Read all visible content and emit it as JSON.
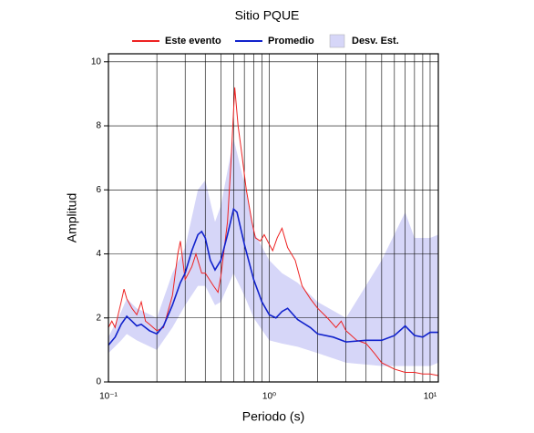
{
  "chart_data": {
    "type": "line",
    "title": "Sitio PQUE",
    "xlabel": "Periodo (s)",
    "ylabel": "Amplitud",
    "xscale": "log",
    "xlim": [
      0.1,
      11.25
    ],
    "ylim": [
      0,
      10.25
    ],
    "xticks": [
      {
        "value": 0.1,
        "label": "10⁻¹"
      },
      {
        "value": 1,
        "label": "10⁰"
      },
      {
        "value": 10,
        "label": "10¹"
      }
    ],
    "xgrid": [
      0.2,
      0.3,
      0.4,
      0.5,
      0.6,
      0.7,
      0.8,
      0.9,
      2,
      3,
      4,
      5,
      6,
      7,
      8,
      9
    ],
    "yticks": [
      0,
      2,
      4,
      6,
      8,
      10
    ],
    "grid": true,
    "legend": "top",
    "band": {
      "name": "Desv. Est.",
      "color": "#d6d6f8",
      "x": [
        0.1,
        0.12,
        0.13,
        0.15,
        0.2,
        0.25,
        0.3,
        0.36,
        0.4,
        0.46,
        0.5,
        0.6,
        0.7,
        0.8,
        1.0,
        1.2,
        1.5,
        2.0,
        3.0,
        5.0,
        7.0,
        8.0,
        10,
        11.25
      ],
      "lower": [
        0.9,
        1.3,
        1.5,
        1.3,
        1.0,
        1.7,
        2.4,
        3.0,
        3.0,
        2.4,
        2.5,
        3.4,
        2.7,
        2.0,
        1.3,
        1.2,
        1.1,
        0.9,
        0.6,
        0.5,
        0.5,
        0.5,
        0.5,
        0.6
      ],
      "upper": [
        1.4,
        2.2,
        2.6,
        2.3,
        2.0,
        3.4,
        4.2,
        6.0,
        6.3,
        5.0,
        5.5,
        7.6,
        6.2,
        4.7,
        3.8,
        3.4,
        3.1,
        2.5,
        2.0,
        3.8,
        5.3,
        4.5,
        4.5,
        4.6
      ]
    },
    "series": [
      {
        "name": "Este evento",
        "color": "#ee2222",
        "x": [
          0.1,
          0.105,
          0.11,
          0.12,
          0.125,
          0.13,
          0.14,
          0.15,
          0.16,
          0.17,
          0.18,
          0.2,
          0.22,
          0.25,
          0.27,
          0.28,
          0.3,
          0.33,
          0.35,
          0.38,
          0.4,
          0.45,
          0.48,
          0.5,
          0.55,
          0.58,
          0.61,
          0.64,
          0.68,
          0.72,
          0.78,
          0.82,
          0.88,
          0.93,
          1.0,
          1.05,
          1.12,
          1.2,
          1.3,
          1.45,
          1.6,
          1.8,
          2.0,
          2.3,
          2.6,
          2.8,
          3.0,
          3.5,
          4.0,
          4.5,
          5.0,
          6.0,
          7.0,
          8.0,
          9.0,
          10.0,
          11.25
        ],
        "values": [
          1.7,
          1.9,
          1.7,
          2.5,
          2.9,
          2.6,
          2.3,
          2.1,
          2.5,
          1.9,
          1.8,
          1.6,
          1.7,
          2.7,
          4.0,
          4.4,
          3.2,
          3.6,
          4.0,
          3.4,
          3.4,
          3.0,
          2.8,
          3.3,
          5.0,
          7.0,
          9.2,
          8.0,
          7.0,
          6.0,
          5.0,
          4.5,
          4.4,
          4.6,
          4.3,
          4.1,
          4.5,
          4.8,
          4.2,
          3.8,
          3.0,
          2.6,
          2.3,
          2.0,
          1.7,
          1.9,
          1.6,
          1.3,
          1.2,
          0.9,
          0.6,
          0.4,
          0.3,
          0.3,
          0.25,
          0.25,
          0.2
        ]
      },
      {
        "name": "Promedio",
        "color": "#1122cc",
        "x": [
          0.1,
          0.11,
          0.12,
          0.13,
          0.14,
          0.15,
          0.16,
          0.18,
          0.2,
          0.22,
          0.25,
          0.28,
          0.3,
          0.33,
          0.36,
          0.38,
          0.4,
          0.43,
          0.46,
          0.5,
          0.55,
          0.6,
          0.63,
          0.7,
          0.8,
          0.9,
          1.0,
          1.1,
          1.2,
          1.3,
          1.5,
          1.8,
          2.0,
          2.5,
          3.0,
          4.0,
          5.0,
          6.0,
          7.0,
          8.0,
          9.0,
          10,
          11.25
        ],
        "values": [
          1.15,
          1.4,
          1.8,
          2.05,
          1.9,
          1.75,
          1.8,
          1.6,
          1.5,
          1.75,
          2.4,
          3.1,
          3.4,
          4.1,
          4.6,
          4.7,
          4.5,
          3.8,
          3.5,
          3.8,
          4.6,
          5.4,
          5.3,
          4.3,
          3.2,
          2.5,
          2.1,
          2.0,
          2.2,
          2.3,
          1.95,
          1.7,
          1.5,
          1.4,
          1.25,
          1.3,
          1.3,
          1.45,
          1.75,
          1.45,
          1.4,
          1.55,
          1.55
        ]
      }
    ]
  }
}
